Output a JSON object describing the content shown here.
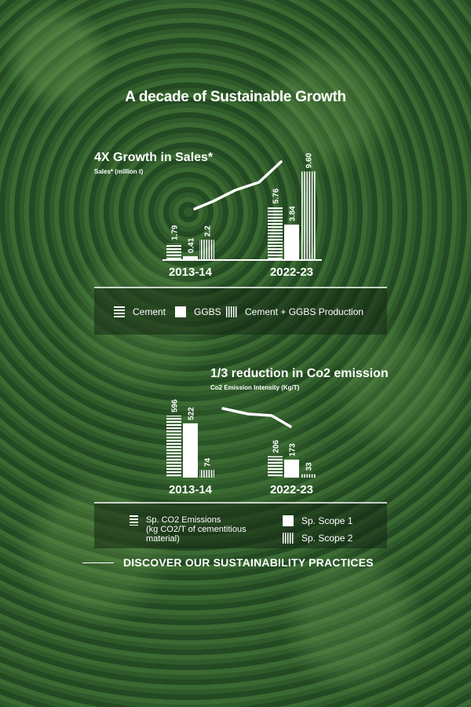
{
  "page_title": "A decade of Sustainable Growth",
  "sales_section": {
    "heading": "4X Growth in Sales*",
    "subheading": "Sales* (million t)",
    "legend": [
      "Cement",
      "GGBS",
      "Cement + GGBS Production"
    ]
  },
  "co2_section": {
    "heading": "1/3 reduction in Co2 emission",
    "subheading": "Co2 Emission Intensity (Kg/T)",
    "legend": [
      "Sp. CO2 Emissions\n(kg CO2/T of cementitious\nmaterial)",
      "Sp. Scope 1",
      "Sp. Scope 2"
    ]
  },
  "cta_label": "DISCOVER OUR SUSTAINABILITY PRACTICES",
  "chart_data": [
    {
      "type": "bar",
      "title": "4X Growth in Sales*",
      "ylabel": "Sales* (million t)",
      "categories": [
        "2013-14",
        "2022-23"
      ],
      "series": [
        {
          "name": "Cement",
          "values": [
            1.79,
            5.76
          ],
          "labels": [
            "1.79",
            "5.76"
          ]
        },
        {
          "name": "GGBS",
          "values": [
            0.41,
            3.84
          ],
          "labels": [
            "0.41",
            "3.84"
          ]
        },
        {
          "name": "Cement + GGBS Production",
          "values": [
            2.2,
            9.6
          ],
          "labels": [
            "2.2",
            "9.60"
          ]
        }
      ],
      "trend": "up"
    },
    {
      "type": "bar",
      "title": "1/3 reduction in Co2 emission",
      "ylabel": "Co2 Emission Intensity (Kg/T)",
      "categories": [
        "2013-14",
        "2022-23"
      ],
      "series": [
        {
          "name": "Sp. CO2 Emissions (kg CO2/T of cementitious material)",
          "values": [
            596,
            206
          ],
          "labels": [
            "596",
            "206"
          ]
        },
        {
          "name": "Sp. Scope 1",
          "values": [
            522,
            173
          ],
          "labels": [
            "522",
            "173"
          ]
        },
        {
          "name": "Sp. Scope 2",
          "values": [
            74,
            33
          ],
          "labels": [
            "74",
            "33"
          ]
        }
      ],
      "trend": "down"
    }
  ],
  "colors": {
    "foreground": "#ffffff",
    "forest": "#2a5226"
  }
}
